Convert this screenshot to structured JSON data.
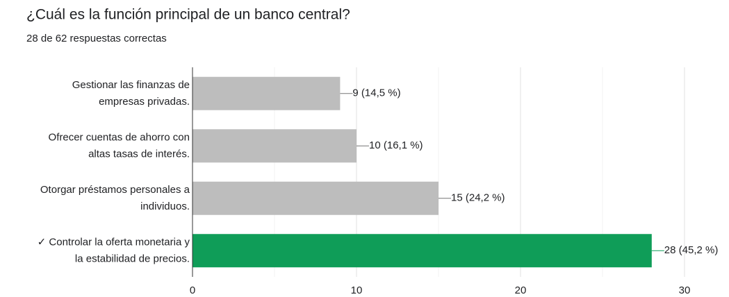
{
  "chart_data": {
    "type": "bar",
    "orientation": "horizontal",
    "title": "¿Cuál es la función principal de un banco central?",
    "subtitle": "28 de 62 respuestas correctas",
    "categories": [
      [
        "Gestionar las finanzas de",
        "empresas privadas."
      ],
      [
        "Ofrecer cuentas de ahorro con",
        "altas tasas de interés."
      ],
      [
        "Otorgar préstamos personales a",
        "individuos."
      ],
      [
        "✓ Controlar la oferta monetaria y",
        "la estabilidad de precios."
      ]
    ],
    "values": [
      9,
      10,
      15,
      28
    ],
    "value_labels": [
      "9 (14,5 %)",
      "10 (16,1 %)",
      "15 (24,2 %)",
      "28 (45,2 %)"
    ],
    "colors": [
      "#bdbdbd",
      "#bdbdbd",
      "#bdbdbd",
      "#0f9d58"
    ],
    "label_colors": [
      "#757575",
      "#757575",
      "#757575",
      "#0f9d58"
    ],
    "xlim": [
      0,
      30
    ],
    "xticks": [
      0,
      10,
      20,
      30
    ],
    "minor_ticks": [
      5,
      15,
      25
    ],
    "grid": true
  }
}
